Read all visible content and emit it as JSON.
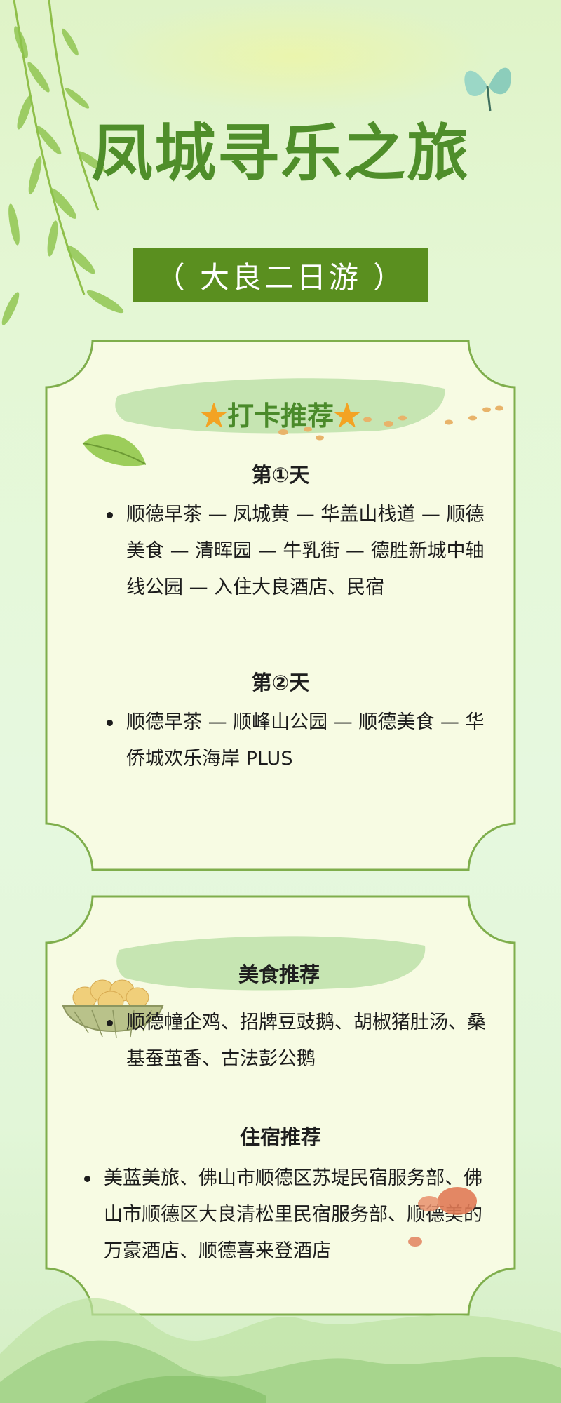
{
  "header": {
    "title": "凤城寻乐之旅",
    "subtitle": "（ 大良二日游 ）"
  },
  "checkin": {
    "title": "打卡推荐",
    "star_left": "★",
    "star_right": "★",
    "days": [
      {
        "label": "第①天",
        "items": [
          "顺德早茶 — 凤城黄 — 华盖山栈道 — 顺德美食 — 清晖园 — 牛乳街 — 德胜新城中轴线公园 — 入住大良酒店、民宿"
        ]
      },
      {
        "label": "第②天",
        "items": [
          "顺德早茶 — 顺峰山公园 — 顺德美食 — 华侨城欢乐海岸 PLUS"
        ]
      }
    ]
  },
  "food": {
    "title": "美食推荐",
    "items": [
      "顺德幢企鸡、招牌豆豉鹅、胡椒猪肚汤、桑基蚕茧香、古法彭公鹅"
    ]
  },
  "stay": {
    "title": "住宿推荐",
    "items": [
      "美蓝美旅、佛山市顺德区苏堤民宿服务部、佛山市顺德区大良清松里民宿服务部、顺德美的万豪酒店、顺德喜来登酒店"
    ]
  },
  "colors": {
    "accent_green": "#5a8f1f",
    "title_green": "#4f8e2a",
    "card_bg": "#f7fbe3",
    "card_border": "#7fae4c",
    "star": "#f3a323"
  }
}
